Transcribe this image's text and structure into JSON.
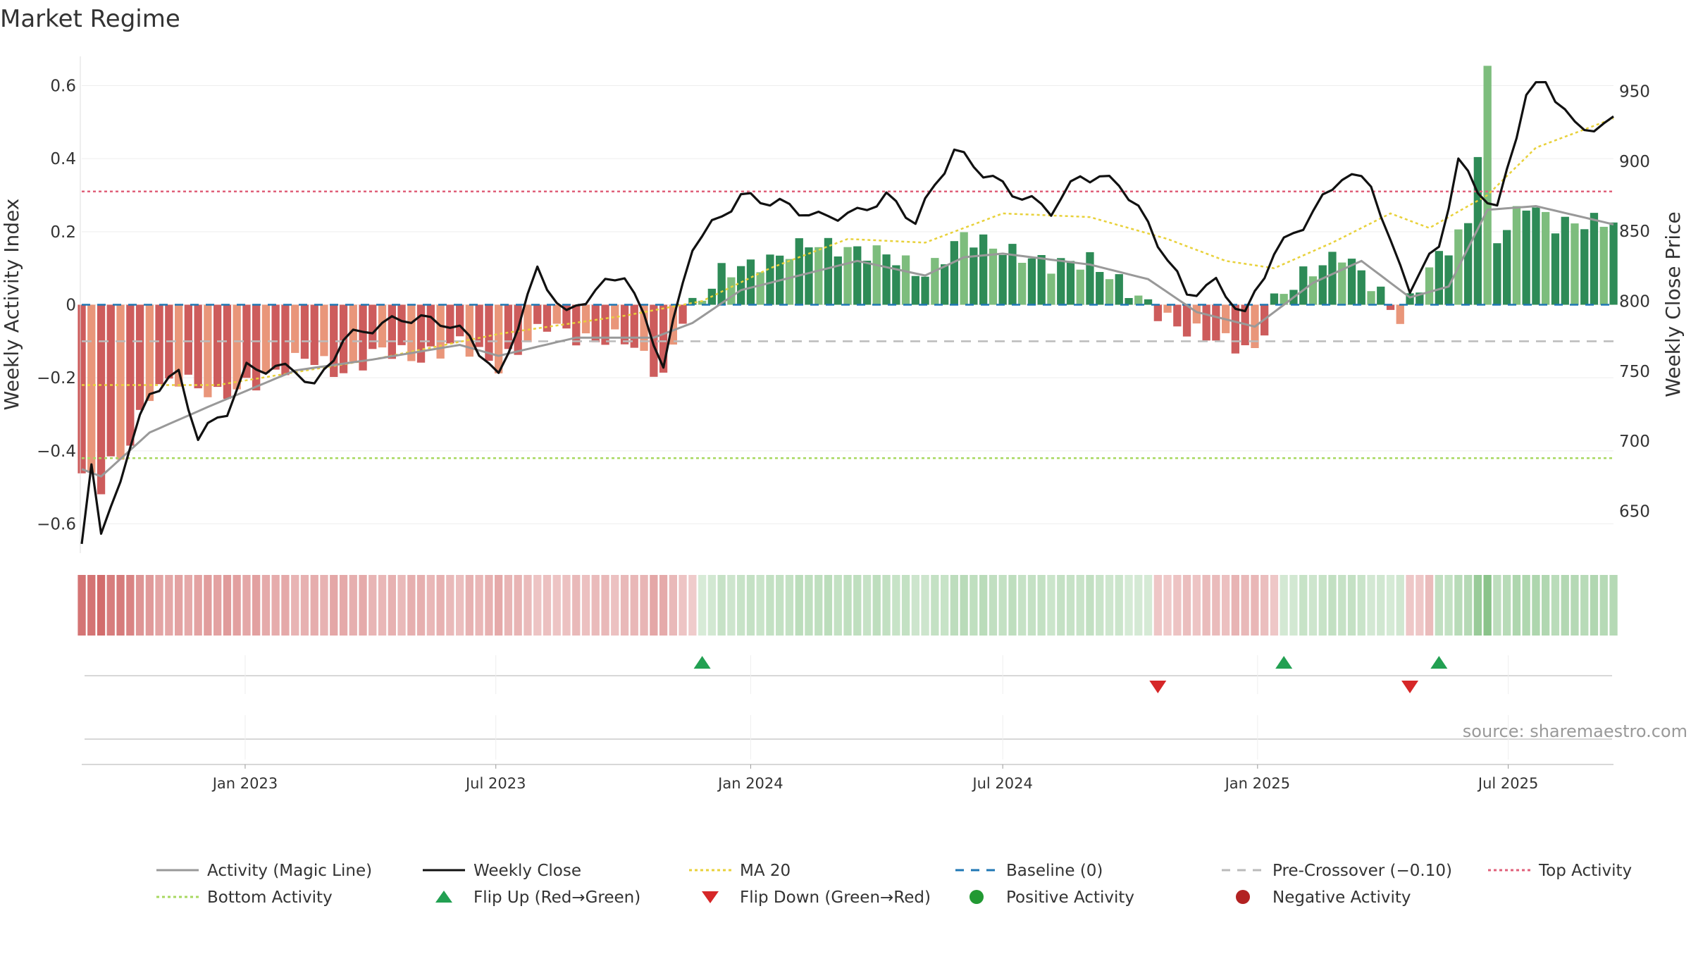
{
  "chart_data": {
    "type": "bar",
    "title": "Market Regime",
    "ylabel_left": "Weekly Activity Index",
    "ylabel_right": "Weekly Close Price",
    "left_ylim": [
      -0.68,
      0.68
    ],
    "right_ylim": [
      620,
      975
    ],
    "left_ticks": [
      {
        "value": 0.6,
        "label": "0.6"
      },
      {
        "value": 0.4,
        "label": "0.4"
      },
      {
        "value": 0.2,
        "label": "0.2"
      },
      {
        "value": 0,
        "label": "0"
      },
      {
        "value": -0.2,
        "label": "−0.2"
      },
      {
        "value": -0.4,
        "label": "−0.4"
      },
      {
        "value": -0.6,
        "label": "−0.6"
      }
    ],
    "right_ticks": [
      {
        "value": 950,
        "label": "950"
      },
      {
        "value": 900,
        "label": "900"
      },
      {
        "value": 850,
        "label": "850"
      },
      {
        "value": 800,
        "label": "800"
      },
      {
        "value": 750,
        "label": "750"
      },
      {
        "value": 700,
        "label": "700"
      },
      {
        "value": 650,
        "label": "650"
      }
    ],
    "x_start": "2022-09-05",
    "x_end": "2025-09-15",
    "x_ticks": [
      {
        "date": "2023-01-01",
        "label": "Jan 2023"
      },
      {
        "date": "2023-07-01",
        "label": "Jul 2023"
      },
      {
        "date": "2024-01-01",
        "label": "Jan 2024"
      },
      {
        "date": "2024-07-01",
        "label": "Jul 2024"
      },
      {
        "date": "2025-01-01",
        "label": "Jan 2025"
      },
      {
        "date": "2025-07-01",
        "label": "Jul 2025"
      }
    ],
    "reference_lines": {
      "baseline": 0,
      "pre_crossover": -0.1,
      "top_activity": 0.31,
      "bottom_activity": -0.42
    },
    "anchors_activity": [
      [
        "2022-09-05",
        -0.48
      ],
      [
        "2022-09-12",
        -0.46
      ],
      [
        "2022-09-19",
        -0.5
      ],
      [
        "2022-09-26",
        -0.44
      ],
      [
        "2022-10-10",
        -0.38
      ],
      [
        "2022-10-24",
        -0.24
      ],
      [
        "2022-11-14",
        -0.2
      ],
      [
        "2022-12-12",
        -0.25
      ],
      [
        "2023-01-16",
        -0.2
      ],
      [
        "2023-02-13",
        -0.14
      ],
      [
        "2023-03-13",
        -0.19
      ],
      [
        "2023-04-10",
        -0.12
      ],
      [
        "2023-05-08",
        -0.15
      ],
      [
        "2023-06-05",
        -0.1
      ],
      [
        "2023-07-03",
        -0.17
      ],
      [
        "2023-08-07",
        -0.05
      ],
      [
        "2023-09-04",
        -0.1
      ],
      [
        "2023-10-02",
        -0.09
      ],
      [
        "2023-10-30",
        -0.2
      ],
      [
        "2023-11-13",
        -0.03
      ],
      [
        "2023-11-27",
        0.02
      ],
      [
        "2023-12-11",
        0.09
      ],
      [
        "2024-01-15",
        0.12
      ],
      [
        "2024-02-12",
        0.17
      ],
      [
        "2024-03-11",
        0.15
      ],
      [
        "2024-04-08",
        0.14
      ],
      [
        "2024-05-06",
        0.08
      ],
      [
        "2024-06-03",
        0.19
      ],
      [
        "2024-07-01",
        0.15
      ],
      [
        "2024-08-05",
        0.11
      ],
      [
        "2024-09-02",
        0.12
      ],
      [
        "2024-10-07",
        0.02
      ],
      [
        "2024-11-04",
        -0.06
      ],
      [
        "2024-12-09",
        -0.1
      ],
      [
        "2024-12-30",
        -0.13
      ],
      [
        "2025-01-13",
        0.01
      ],
      [
        "2025-02-03",
        0.08
      ],
      [
        "2025-03-03",
        0.14
      ],
      [
        "2025-03-24",
        0.06
      ],
      [
        "2025-04-14",
        -0.04
      ],
      [
        "2025-05-05",
        0.1
      ],
      [
        "2025-06-02",
        0.22
      ],
      [
        "2025-06-16",
        0.63
      ],
      [
        "2025-06-23",
        0.18
      ],
      [
        "2025-07-14",
        0.28
      ],
      [
        "2025-08-04",
        0.22
      ],
      [
        "2025-09-15",
        0.23
      ]
    ],
    "anchors_close": [
      [
        "2022-09-05",
        630
      ],
      [
        "2022-09-12",
        685
      ],
      [
        "2022-09-19",
        630
      ],
      [
        "2022-10-03",
        675
      ],
      [
        "2022-10-24",
        735
      ],
      [
        "2022-11-14",
        748
      ],
      [
        "2022-11-28",
        703
      ],
      [
        "2022-12-19",
        722
      ],
      [
        "2023-01-02",
        752
      ],
      [
        "2023-02-06",
        752
      ],
      [
        "2023-02-20",
        738
      ],
      [
        "2023-03-13",
        773
      ],
      [
        "2023-04-03",
        781
      ],
      [
        "2023-04-24",
        788
      ],
      [
        "2023-05-22",
        786
      ],
      [
        "2023-06-12",
        775
      ],
      [
        "2023-07-03",
        745
      ],
      [
        "2023-07-31",
        822
      ],
      [
        "2023-08-21",
        790
      ],
      [
        "2023-09-11",
        808
      ],
      [
        "2023-10-02",
        820
      ],
      [
        "2023-10-30",
        755
      ],
      [
        "2023-11-20",
        840
      ],
      [
        "2023-12-25",
        875
      ],
      [
        "2024-01-22",
        870
      ],
      [
        "2024-02-19",
        860
      ],
      [
        "2024-03-18",
        863
      ],
      [
        "2024-04-08",
        875
      ],
      [
        "2024-04-29",
        857
      ],
      [
        "2024-05-27",
        908
      ],
      [
        "2024-06-17",
        892
      ],
      [
        "2024-07-08",
        878
      ],
      [
        "2024-08-05",
        865
      ],
      [
        "2024-08-26",
        890
      ],
      [
        "2024-09-23",
        885
      ],
      [
        "2024-10-14",
        855
      ],
      [
        "2024-11-11",
        805
      ],
      [
        "2024-12-02",
        813
      ],
      [
        "2024-12-23",
        790
      ],
      [
        "2025-01-13",
        835
      ],
      [
        "2025-02-03",
        855
      ],
      [
        "2025-03-03",
        890
      ],
      [
        "2025-03-24",
        885
      ],
      [
        "2025-04-07",
        840
      ],
      [
        "2025-04-21",
        810
      ],
      [
        "2025-05-12",
        840
      ],
      [
        "2025-05-26",
        900
      ],
      [
        "2025-06-09",
        880
      ],
      [
        "2025-06-23",
        865
      ],
      [
        "2025-07-14",
        948
      ],
      [
        "2025-07-28",
        957
      ],
      [
        "2025-08-18",
        925
      ],
      [
        "2025-09-08",
        924
      ],
      [
        "2025-09-15",
        930
      ]
    ],
    "anchors_magic": [
      [
        "2022-09-05",
        -0.45
      ],
      [
        "2022-09-19",
        -0.47
      ],
      [
        "2022-10-24",
        -0.35
      ],
      [
        "2022-12-05",
        -0.28
      ],
      [
        "2023-02-06",
        -0.18
      ],
      [
        "2023-04-03",
        -0.15
      ],
      [
        "2023-06-05",
        -0.11
      ],
      [
        "2023-07-03",
        -0.14
      ],
      [
        "2023-08-28",
        -0.09
      ],
      [
        "2023-10-23",
        -0.09
      ],
      [
        "2023-11-20",
        -0.05
      ],
      [
        "2023-12-25",
        0.04
      ],
      [
        "2024-02-05",
        0.08
      ],
      [
        "2024-03-18",
        0.12
      ],
      [
        "2024-05-06",
        0.08
      ],
      [
        "2024-06-03",
        0.13
      ],
      [
        "2024-07-01",
        0.14
      ],
      [
        "2024-09-02",
        0.11
      ],
      [
        "2024-10-14",
        0.07
      ],
      [
        "2024-11-18",
        -0.02
      ],
      [
        "2024-12-30",
        -0.06
      ],
      [
        "2025-02-10",
        0.06
      ],
      [
        "2025-03-17",
        0.12
      ],
      [
        "2025-04-21",
        0.02
      ],
      [
        "2025-05-19",
        0.05
      ],
      [
        "2025-06-16",
        0.26
      ],
      [
        "2025-07-21",
        0.27
      ],
      [
        "2025-09-15",
        0.22
      ]
    ],
    "anchors_ma20": [
      [
        "2022-09-05",
        -0.22
      ],
      [
        "2022-12-12",
        -0.22
      ],
      [
        "2023-04-03",
        -0.15
      ],
      [
        "2023-07-03",
        -0.08
      ],
      [
        "2023-10-02",
        -0.03
      ],
      [
        "2023-11-27",
        0.01
      ],
      [
        "2024-01-15",
        0.1
      ],
      [
        "2024-03-11",
        0.18
      ],
      [
        "2024-05-06",
        0.17
      ],
      [
        "2024-07-01",
        0.25
      ],
      [
        "2024-09-02",
        0.24
      ],
      [
        "2024-10-28",
        0.18
      ],
      [
        "2024-12-09",
        0.12
      ],
      [
        "2025-01-13",
        0.1
      ],
      [
        "2025-02-24",
        0.17
      ],
      [
        "2025-04-07",
        0.25
      ],
      [
        "2025-05-05",
        0.21
      ],
      [
        "2025-06-16",
        0.3
      ],
      [
        "2025-07-21",
        0.43
      ],
      [
        "2025-09-15",
        0.51
      ]
    ],
    "regime_bands": [
      {
        "start": "2022-09-05",
        "end": "2023-11-27",
        "regime": "negative"
      },
      {
        "start": "2023-11-27",
        "end": "2024-10-21",
        "regime": "positive"
      },
      {
        "start": "2024-10-21",
        "end": "2025-01-20",
        "regime": "negative"
      },
      {
        "start": "2025-01-20",
        "end": "2025-04-21",
        "regime": "positive"
      },
      {
        "start": "2025-04-21",
        "end": "2025-05-12",
        "regime": "negative"
      },
      {
        "start": "2025-05-12",
        "end": "2025-09-15",
        "regime": "positive"
      }
    ],
    "flips_up": [
      "2023-11-27",
      "2025-01-20",
      "2025-05-12"
    ],
    "flips_down": [
      "2024-10-21",
      "2025-04-21"
    ],
    "colors": {
      "positive_dark": "#2e8b57",
      "positive_light": "#7dbd7d",
      "negative_dark": "#cd5c5c",
      "negative_light": "#e9967a",
      "magic_line": "#999999",
      "weekly_close": "#111111",
      "ma20": "#e8d13a",
      "baseline": "#1f77b4",
      "pre_crossover": "#bbbbbb",
      "top_activity": "#e0607a",
      "bottom_activity": "#a8d860",
      "flip_up": "#22a052",
      "flip_down": "#d62728",
      "positive_marker": "#229933",
      "negative_marker": "#b22222"
    },
    "legend": [
      {
        "label": "Activity (Magic Line)",
        "kind": "line",
        "color": "#999999",
        "dash": ""
      },
      {
        "label": "Weekly Close",
        "kind": "line",
        "color": "#111111",
        "dash": ""
      },
      {
        "label": "MA 20",
        "kind": "line",
        "color": "#e8d13a",
        "dash": "4,4"
      },
      {
        "label": "Baseline (0)",
        "kind": "line",
        "color": "#1f77b4",
        "dash": "12,10"
      },
      {
        "label": "Pre-Crossover (−0.10)",
        "kind": "line",
        "color": "#bbbbbb",
        "dash": "12,10"
      },
      {
        "label": "Top Activity",
        "kind": "line",
        "color": "#e0607a",
        "dash": "4,4"
      },
      {
        "label": "Bottom Activity",
        "kind": "line",
        "color": "#a8d860",
        "dash": "4,4"
      },
      {
        "label": "Flip Up (Red→Green)",
        "kind": "tri-up",
        "color": "#22a052",
        "dash": ""
      },
      {
        "label": "Flip Down (Green→Red)",
        "kind": "tri-down",
        "color": "#d62728",
        "dash": ""
      },
      {
        "label": "Positive Activity",
        "kind": "dot",
        "color": "#229933",
        "dash": ""
      },
      {
        "label": "Negative Activity",
        "kind": "dot",
        "color": "#b22222",
        "dash": ""
      }
    ],
    "source": "source: sharemaestro.com"
  }
}
